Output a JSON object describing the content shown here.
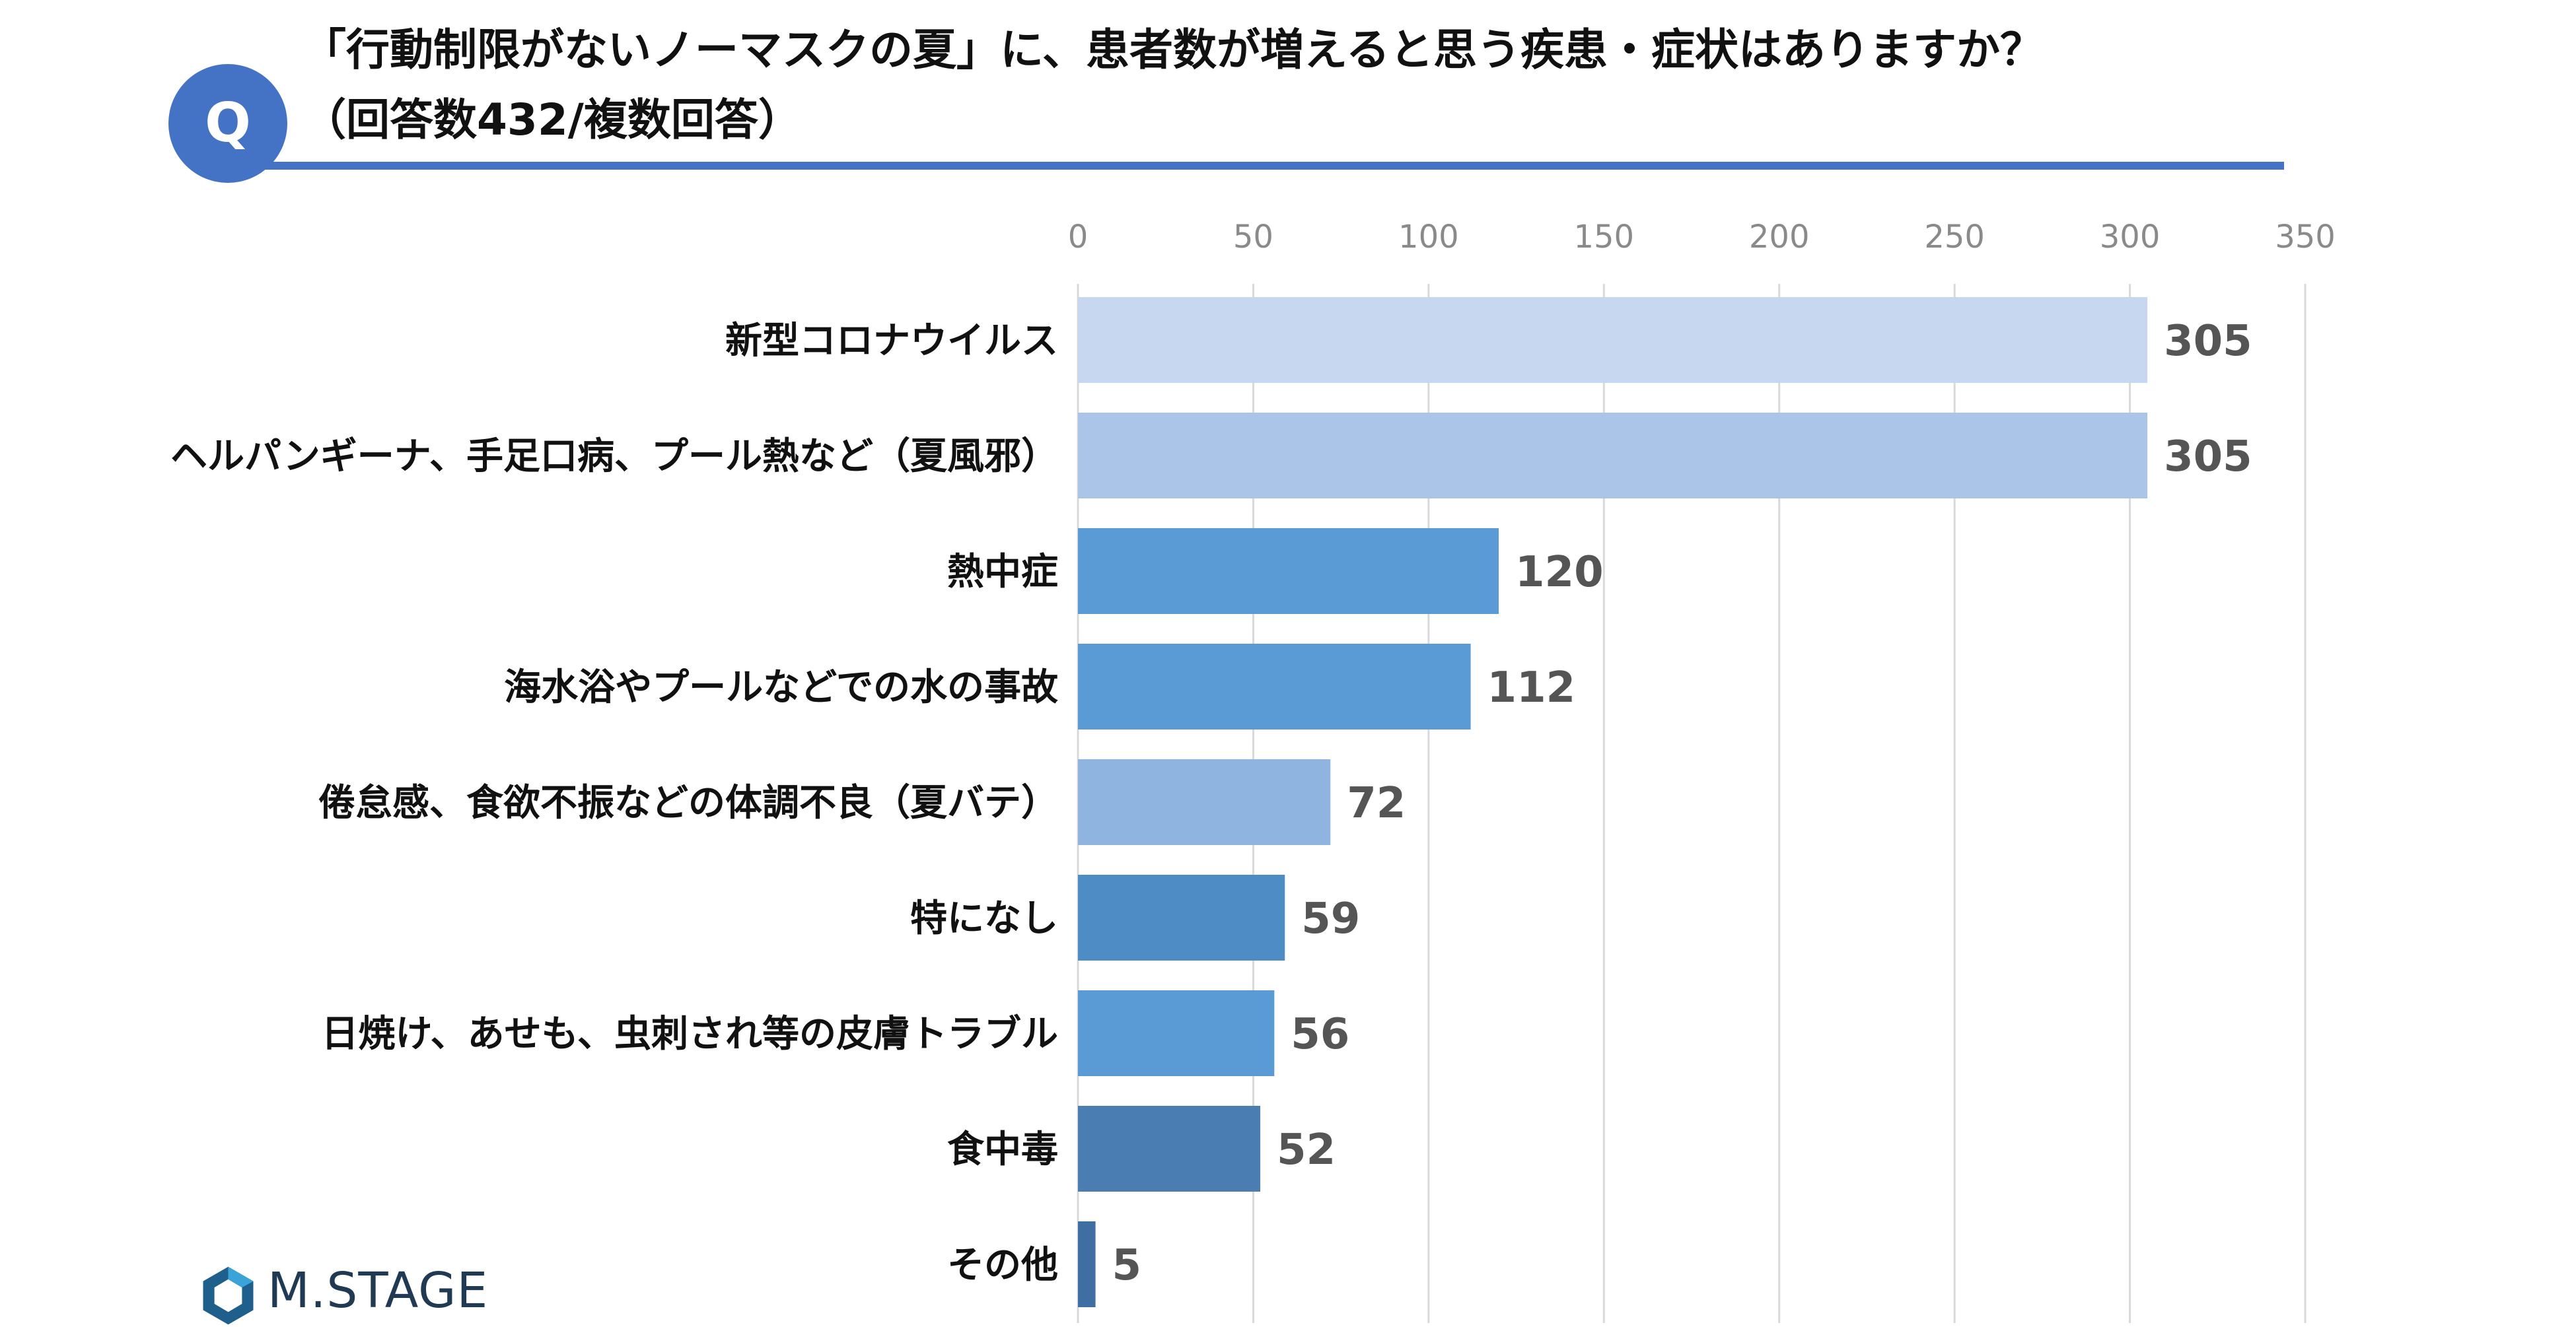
{
  "header": {
    "badge": "Q",
    "title_line1": "「行動制限がないノーマスクの夏」に、患者数が増えると思う疾患・症状はありますか？",
    "title_line2": "（回答数432/複数回答）"
  },
  "brand": {
    "name": "M.STAGE",
    "color": "#1f3a52"
  },
  "chart_data": {
    "type": "bar",
    "orientation": "horizontal",
    "categories": [
      "新型コロナウイルス",
      "ヘルパンギーナ、手足口病、プール熱など（夏風邪）",
      "熱中症",
      "海水浴やプールなどでの水の事故",
      "倦怠感、食欲不振などの体調不良（夏バテ）",
      "特になし",
      "日焼け、あせも、虫刺され等の皮膚トラブル",
      "食中毒",
      "その他"
    ],
    "values": [
      305,
      305,
      120,
      112,
      72,
      59,
      56,
      52,
      5
    ],
    "colors": [
      "#c6d7ef",
      "#abc5e8",
      "#5b9bd5",
      "#5b9bd5",
      "#8eb4df",
      "#4e8cc6",
      "#5b9bd5",
      "#4a7eb2",
      "#3f6ea3"
    ],
    "xlim": [
      0,
      350
    ],
    "xticks": [
      0,
      50,
      100,
      150,
      200,
      250,
      300,
      350
    ],
    "grid": true,
    "data_labels": true
  }
}
